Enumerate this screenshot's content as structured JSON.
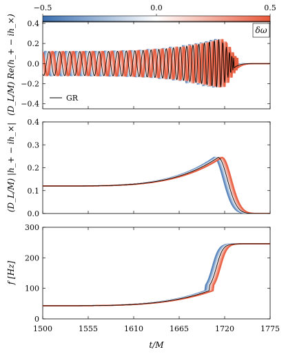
{
  "colorbar": {
    "ticks": [
      "−0.5",
      "0.0",
      "0.5"
    ],
    "range": [
      -0.5,
      0.5
    ],
    "label": "δω",
    "colormap": [
      "#3b6fb0",
      "#ffffff",
      "#e8583a"
    ]
  },
  "xaxis": {
    "label": "t/M",
    "range": [
      1500,
      1775
    ],
    "ticks": [
      1500,
      1555,
      1610,
      1665,
      1720,
      1775
    ],
    "ticklabels": [
      "1500",
      "1555",
      "1610",
      "1665",
      "1720",
      "1775"
    ]
  },
  "legend": {
    "gr_label": "GR",
    "line_color": "#000000"
  },
  "chart_data": [
    {
      "type": "line",
      "ylabel": "(D_L/M) Re(h_+ − ih_×)",
      "ylim": [
        -0.45,
        0.42
      ],
      "yticks": [
        -0.4,
        -0.2,
        0.0,
        0.2,
        0.4
      ],
      "yticklabels": [
        "−0.4",
        "−0.2",
        "0.0",
        "0.2",
        "0.4"
      ],
      "series": [
        {
          "name": "GR",
          "x": [
            1500,
            1520,
            1540,
            1560,
            1580,
            1600,
            1620,
            1640,
            1660,
            1680,
            1700,
            1710,
            1720,
            1730,
            1740,
            1750,
            1760,
            1775
          ],
          "values": [
            0.0,
            -0.1,
            0.13,
            0.0,
            -0.13,
            0.12,
            -0.14,
            0.16,
            -0.18,
            0.2,
            -0.25,
            0.22,
            -0.15,
            0.08,
            -0.04,
            0.02,
            -0.01,
            0.0
          ]
        }
      ]
    },
    {
      "type": "line",
      "ylabel": "(D_L/M) |h_+ − ih_×|",
      "ylim": [
        0.0,
        0.4
      ],
      "yticks": [
        0.0,
        0.1,
        0.2,
        0.3,
        0.4
      ],
      "yticklabels": [
        "0.0",
        "0.1",
        "0.2",
        "0.3",
        "0.4"
      ],
      "series": [
        {
          "name": "GR",
          "x": [
            1500,
            1550,
            1600,
            1650,
            1680,
            1700,
            1710,
            1718,
            1730,
            1740,
            1760,
            1775
          ],
          "values": [
            0.12,
            0.13,
            0.145,
            0.17,
            0.2,
            0.235,
            0.245,
            0.2,
            0.1,
            0.05,
            0.01,
            0.0
          ]
        }
      ]
    },
    {
      "type": "line",
      "ylabel": "f [Hz]",
      "ylim": [
        0,
        300
      ],
      "yticks": [
        0,
        100,
        200,
        300
      ],
      "yticklabels": [
        "0",
        "100",
        "200",
        "300"
      ],
      "series": [
        {
          "name": "GR",
          "x": [
            1500,
            1550,
            1600,
            1650,
            1680,
            1700,
            1710,
            1720,
            1730,
            1740,
            1760,
            1775
          ],
          "values": [
            43,
            50,
            60,
            75,
            95,
            130,
            170,
            220,
            240,
            245,
            246,
            246
          ]
        }
      ]
    }
  ]
}
